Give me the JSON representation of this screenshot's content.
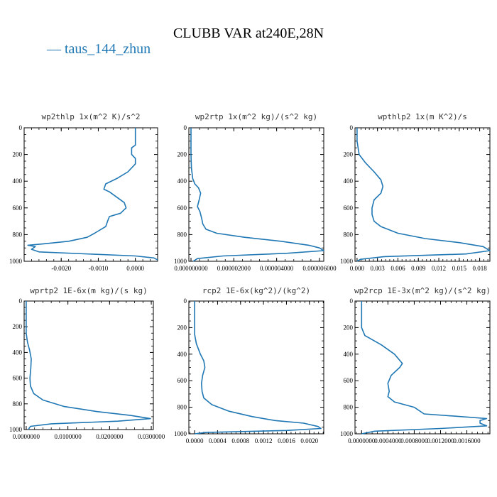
{
  "figure_title": "CLUBB VAR at240E,28N",
  "legend": {
    "label": "taus_144_zhun",
    "color": "#1f77b4"
  },
  "chart_data": [
    {
      "type": "line",
      "title": "wp2thlp   1x(m^2 K)/s^2",
      "xlim": [
        -0.003,
        0.0006
      ],
      "xticks": [
        -0.002,
        -0.001,
        0.0
      ],
      "xticklabels": [
        "-0.0020",
        "-0.0010",
        "0.0000"
      ],
      "ylim": [
        1000,
        0
      ],
      "yticks": [
        0,
        200,
        400,
        600,
        800,
        1000
      ],
      "yticklabels": [
        "0",
        "200",
        "400",
        "600",
        "800",
        "1000"
      ],
      "series": [
        {
          "points": [
            [
              0.0,
              0
            ],
            [
              0.0,
              130
            ],
            [
              -0.0001,
              150
            ],
            [
              -0.0001,
              200
            ],
            [
              0.0,
              230
            ],
            [
              0.0,
              270
            ],
            [
              -0.0002,
              330
            ],
            [
              -0.0005,
              380
            ],
            [
              -0.0008,
              420
            ],
            [
              -0.00085,
              460
            ],
            [
              -0.0007,
              480
            ],
            [
              -0.0005,
              520
            ],
            [
              -0.0003,
              560
            ],
            [
              -0.00025,
              600
            ],
            [
              -0.0004,
              640
            ],
            [
              -0.0007,
              665
            ],
            [
              -0.00075,
              700
            ],
            [
              -0.0008,
              740
            ],
            [
              -0.0011,
              790
            ],
            [
              -0.0013,
              820
            ],
            [
              -0.0018,
              850
            ],
            [
              -0.0025,
              870
            ],
            [
              -0.0029,
              880
            ],
            [
              -0.0027,
              890
            ],
            [
              -0.0028,
              910
            ],
            [
              -0.0026,
              930
            ],
            [
              0.0,
              960
            ],
            [
              0.0005,
              975
            ],
            [
              0.0006,
              990
            ]
          ]
        }
      ]
    },
    {
      "type": "line",
      "title": "wp2rtp   1x(m^2 kg)/(s^2 kg)",
      "xlim": [
        -1e-07,
        6.2e-06
      ],
      "xticks": [
        0,
        2e-06,
        4e-06,
        6e-06
      ],
      "xticklabels": [
        "0.000000000",
        "0.000002000",
        "0.000004000",
        "0.000006000"
      ],
      "ylim": [
        1000,
        0
      ],
      "yticks": [
        0,
        200,
        400,
        600,
        800,
        1000
      ],
      "yticklabels": [
        "0",
        "200",
        "400",
        "600",
        "800",
        "1000"
      ],
      "series": [
        {
          "points": [
            [
              0,
              0
            ],
            [
              0,
              200
            ],
            [
              2e-08,
              300
            ],
            [
              8e-08,
              380
            ],
            [
              1.8e-07,
              420
            ],
            [
              3.5e-07,
              450
            ],
            [
              4.5e-07,
              490
            ],
            [
              3.8e-07,
              540
            ],
            [
              3e-07,
              590
            ],
            [
              4.2e-07,
              630
            ],
            [
              5e-07,
              680
            ],
            [
              5.5e-07,
              720
            ],
            [
              7e-07,
              760
            ],
            [
              1.2e-06,
              790
            ],
            [
              2.5e-06,
              820
            ],
            [
              4.2e-06,
              850
            ],
            [
              5.5e-06,
              880
            ],
            [
              6e-06,
              900
            ],
            [
              6.2e-06,
              920
            ],
            [
              4.5e-06,
              940
            ],
            [
              1.5e-06,
              960
            ],
            [
              3e-07,
              980
            ],
            [
              1e-07,
              1000
            ]
          ]
        }
      ]
    },
    {
      "type": "line",
      "title": "wpthlp2   1x(m K^2)/s",
      "xlim": [
        -0.0003,
        0.0195
      ],
      "xticks": [
        0,
        0.003,
        0.006,
        0.009,
        0.012,
        0.015,
        0.018
      ],
      "xticklabels": [
        "0.000",
        "0.003",
        "0.006",
        "0.009",
        "0.012",
        "0.015",
        "0.018"
      ],
      "ylim": [
        1000,
        0
      ],
      "yticks": [
        0,
        200,
        400,
        600,
        800,
        1000
      ],
      "yticklabels": [
        "0",
        "200",
        "400",
        "600",
        "800",
        "1000"
      ],
      "series": [
        {
          "points": [
            [
              0,
              0
            ],
            [
              0,
              100
            ],
            [
              0.0003,
              200
            ],
            [
              0.0012,
              260
            ],
            [
              0.0025,
              330
            ],
            [
              0.0035,
              390
            ],
            [
              0.0038,
              440
            ],
            [
              0.0035,
              490
            ],
            [
              0.0025,
              540
            ],
            [
              0.0022,
              600
            ],
            [
              0.0022,
              650
            ],
            [
              0.0025,
              700
            ],
            [
              0.0035,
              740
            ],
            [
              0.006,
              790
            ],
            [
              0.01,
              830
            ],
            [
              0.015,
              860
            ],
            [
              0.0185,
              890
            ],
            [
              0.0195,
              920
            ],
            [
              0.016,
              945
            ],
            [
              0.004,
              965
            ],
            [
              0.0005,
              985
            ],
            [
              0.0,
              1000
            ]
          ]
        }
      ]
    },
    {
      "type": "line",
      "title": "wprtp2   1E-6x(m kg)/(s kg)",
      "xlim": [
        -0.0005,
        0.0305
      ],
      "xticks": [
        0,
        0.01,
        0.02,
        0.03
      ],
      "xticklabels": [
        "0.0000000",
        "0.0100000",
        "0.0200000",
        "0.0300000"
      ],
      "ylim": [
        1000,
        0
      ],
      "yticks": [
        0,
        200,
        400,
        600,
        800,
        1000
      ],
      "yticklabels": [
        "0",
        "200",
        "400",
        "600",
        "800",
        "1000"
      ],
      "series": [
        {
          "points": [
            [
              0,
              0
            ],
            [
              0,
              250
            ],
            [
              0.0003,
              320
            ],
            [
              0.0008,
              380
            ],
            [
              0.0012,
              450
            ],
            [
              0.0011,
              520
            ],
            [
              0.0009,
              600
            ],
            [
              0.001,
              660
            ],
            [
              0.0018,
              720
            ],
            [
              0.004,
              770
            ],
            [
              0.009,
              820
            ],
            [
              0.017,
              860
            ],
            [
              0.025,
              890
            ],
            [
              0.0298,
              915
            ],
            [
              0.022,
              935
            ],
            [
              0.006,
              955
            ],
            [
              0.001,
              975
            ],
            [
              0.0005,
              1000
            ]
          ]
        }
      ]
    },
    {
      "type": "line",
      "title": "rcp2   1E-6x(kg^2)/(kg^2)",
      "xlim": [
        -0.0001,
        0.00225
      ],
      "xticks": [
        0,
        0.0004,
        0.0008,
        0.0012,
        0.0016,
        0.002
      ],
      "xticklabels": [
        "0.0000",
        "0.0004",
        "0.0008",
        "0.0012",
        "0.0016",
        "0.0020"
      ],
      "ylim": [
        1000,
        0
      ],
      "yticks": [
        0,
        200,
        400,
        600,
        800,
        1000
      ],
      "yticklabels": [
        "0",
        "200",
        "400",
        "600",
        "800",
        "1000"
      ],
      "series": [
        {
          "points": [
            [
              0,
              0
            ],
            [
              0,
              250
            ],
            [
              3e-05,
              320
            ],
            [
              0.0001,
              400
            ],
            [
              0.00016,
              450
            ],
            [
              0.00018,
              500
            ],
            [
              0.00014,
              560
            ],
            [
              0.00012,
              620
            ],
            [
              0.00013,
              680
            ],
            [
              0.00016,
              730
            ],
            [
              0.0003,
              780
            ],
            [
              0.0006,
              830
            ],
            [
              0.001,
              870
            ],
            [
              0.0014,
              900
            ],
            [
              0.0019,
              920
            ],
            [
              0.00215,
              945
            ],
            [
              0.0022,
              960
            ],
            [
              0.0016,
              975
            ],
            [
              0.0002,
              990
            ],
            [
              0.0,
              1000
            ]
          ]
        }
      ]
    },
    {
      "type": "line",
      "title": "wp2rcp   1E-3x(m^2 kg)/(s^2 kg)",
      "xlim": [
        -0.0001,
        0.00195
      ],
      "xticks": [
        0,
        0.0004,
        0.0008,
        0.0012,
        0.0016
      ],
      "xticklabels": [
        "0.0000000",
        "0.0004000",
        "0.0008000",
        "0.0012000",
        "0.0016000"
      ],
      "ylim": [
        1000,
        0
      ],
      "yticks": [
        0,
        200,
        400,
        600,
        800,
        1000
      ],
      "yticklabels": [
        "0",
        "200",
        "400",
        "600",
        "800",
        "1000"
      ],
      "series": [
        {
          "points": [
            [
              0,
              0
            ],
            [
              0,
              200
            ],
            [
              5e-05,
              260
            ],
            [
              0.0003,
              330
            ],
            [
              0.0005,
              400
            ],
            [
              0.00062,
              470
            ],
            [
              0.00058,
              500
            ],
            [
              0.00045,
              560
            ],
            [
              0.0004,
              620
            ],
            [
              0.00042,
              680
            ],
            [
              0.0004,
              720
            ],
            [
              0.0005,
              760
            ],
            [
              0.0008,
              800
            ],
            [
              0.00095,
              850
            ],
            [
              0.0015,
              870
            ],
            [
              0.0019,
              885
            ],
            [
              0.0018,
              900
            ],
            [
              0.0018,
              920
            ],
            [
              0.0019,
              940
            ],
            [
              0.0012,
              960
            ],
            [
              0.0002,
              980
            ],
            [
              0.0,
              1000
            ]
          ]
        }
      ]
    }
  ]
}
